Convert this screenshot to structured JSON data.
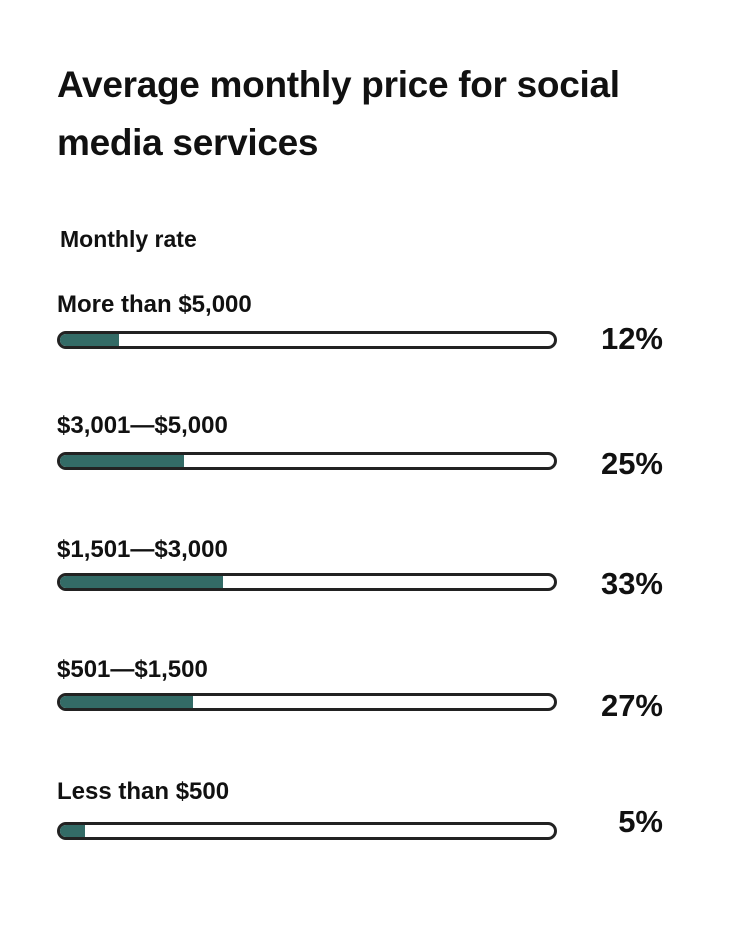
{
  "chart_data": {
    "type": "bar",
    "title": "Average monthly price for social media services",
    "ylabel": "Monthly rate",
    "categories": [
      "More than $5,000",
      "$3,001—$5,000",
      "$1,501—$3,000",
      "$501—$1,500",
      "Less than $500"
    ],
    "values": [
      12,
      25,
      33,
      27,
      5
    ],
    "value_labels": [
      "12%",
      "25%",
      "33%",
      "27%",
      "5%"
    ],
    "xlim": [
      0,
      100
    ],
    "fill_color": "#336b66"
  }
}
